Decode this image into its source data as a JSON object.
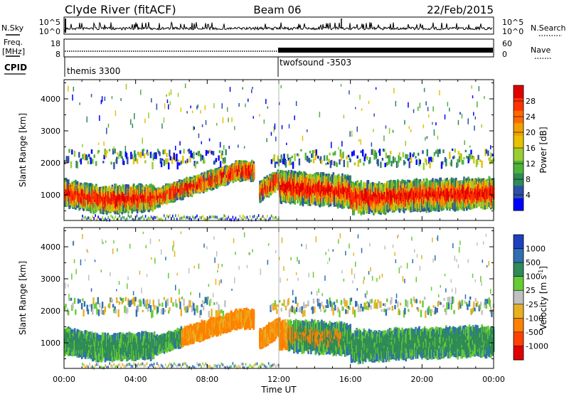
{
  "header": {
    "title": "Clyde River (fitACF)",
    "beam": "Beam 06",
    "date": "22/Feb/2015"
  },
  "chart_data": [
    {
      "type": "line",
      "panel": "noise",
      "left_labels": [
        "N.Sky"
      ],
      "right_labels": [
        "N.Search"
      ],
      "left_ticks": [
        "10^5",
        "10^0"
      ],
      "right_ticks": [
        "10^5",
        "10^0"
      ],
      "y_scale": "log",
      "ylim": [
        1,
        100000
      ]
    },
    {
      "type": "line",
      "panel": "frequency",
      "left_labels": [
        "Freq.",
        "[MHz]"
      ],
      "right_labels": [
        "Nave"
      ],
      "left_ticks": [
        "18",
        "8"
      ],
      "right_ticks": [
        "60",
        "0"
      ],
      "ylim_left": [
        8,
        18
      ],
      "ylim_right": [
        0,
        60
      ]
    },
    {
      "type": "table",
      "panel": "cpid",
      "label": "CPID",
      "segments": [
        {
          "start_hour": 0,
          "end_hour": 12,
          "name": "themis 3300"
        },
        {
          "start_hour": 12,
          "end_hour": 24,
          "name": "twofsound -3503"
        }
      ]
    },
    {
      "type": "heatmap",
      "panel": "power",
      "ylabel": "Slant Range [km]",
      "y_ticks": [
        "1000",
        "2000",
        "3000",
        "4000"
      ],
      "ylim": [
        200,
        4600
      ],
      "xlim": [
        0,
        24
      ],
      "colorbar_label": "Power [dB]",
      "colorbar_ticks": [
        "4",
        "8",
        "12",
        "16",
        "20",
        "24",
        "28"
      ],
      "colorbar_range": [
        0,
        32
      ],
      "colors": [
        "#0000ff",
        "#2d4fa8",
        "#2e8b57",
        "#4fb33a",
        "#9acd32",
        "#e6c200",
        "#f0a000",
        "#ff6a00",
        "#ff3300",
        "#e00000"
      ]
    },
    {
      "type": "heatmap",
      "panel": "velocity",
      "ylabel": "Slant Range [km]",
      "y_ticks": [
        "1000",
        "2000",
        "3000",
        "4000"
      ],
      "ylim": [
        200,
        4600
      ],
      "xlim": [
        0,
        24
      ],
      "colorbar_label": "Velocity [m s",
      "colorbar_unit_exp": "-1",
      "colorbar_ticks": [
        "1000",
        "500",
        "100",
        "25",
        "-25",
        "-100",
        "-500",
        "-1000"
      ],
      "colors": [
        "#1f3fbf",
        "#2e6fb0",
        "#2e8b57",
        "#66cc33",
        "#c0c0c0",
        "#e8b020",
        "#ff8000",
        "#ff4000",
        "#e00000"
      ]
    }
  ],
  "x_axis": {
    "label": "Time UT",
    "ticks": [
      "00:00",
      "04:00",
      "08:00",
      "12:00",
      "16:00",
      "20:00",
      "00:00"
    ]
  }
}
